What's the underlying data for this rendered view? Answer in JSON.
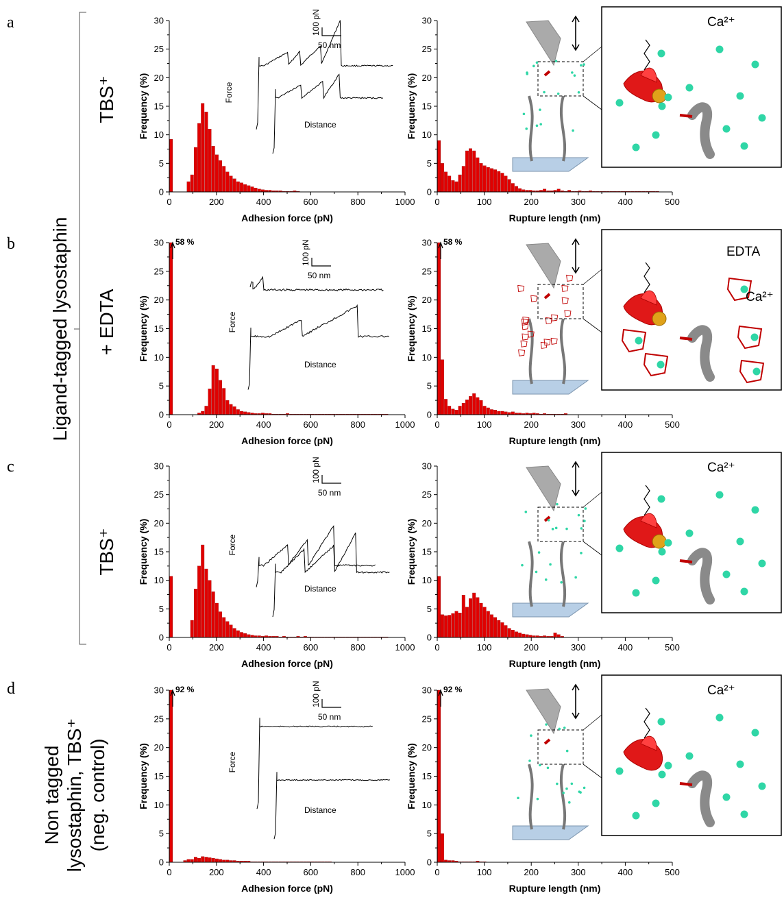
{
  "figure": {
    "row_labels": {
      "left_group": "Ligand-tagged lysostaphin",
      "a": "TBS⁺",
      "b": "+ EDTA",
      "c": "TBS⁺",
      "d_line1": "Non tagged",
      "d_line2": "lysostaphin, TBS⁺",
      "d_line3": "(neg. control)"
    },
    "panels": [
      "a",
      "b",
      "c",
      "d"
    ],
    "inset_labels": {
      "force": "Force",
      "distance": "Distance",
      "scale_force": "100 pN",
      "scale_distance": "50 nm"
    },
    "schematic_labels": {
      "ion": "Ca²⁺",
      "chelator": "EDTA"
    },
    "colors": {
      "bar": "#e00000",
      "bar_edge": "#8a0000",
      "calcium": "#2fd6a6",
      "edta_cage": "#c00000",
      "surface": "#b8cfe6"
    }
  },
  "chart_data": [
    {
      "id": "a-adhesion",
      "type": "bar",
      "panel": "a",
      "xlabel": "Adhesion force (pN)",
      "ylabel": "Frequency (%)",
      "xlim": [
        0,
        1000
      ],
      "ylim": [
        0,
        30
      ],
      "xticks": [
        0,
        200,
        400,
        600,
        800,
        1000
      ],
      "yticks": [
        0,
        5,
        10,
        15,
        20,
        25,
        30
      ],
      "bin_width": 15,
      "zero_bin": 9.2,
      "break_label": "",
      "bin_start": 75,
      "values": [
        1.8,
        3.0,
        7.8,
        12.0,
        15.5,
        14.0,
        11.0,
        8.0,
        6.5,
        5.5,
        4.5,
        3.5,
        2.8,
        2.3,
        1.8,
        1.6,
        1.3,
        1.1,
        0.9,
        0.7,
        0.5,
        0.4,
        0.3,
        0.3,
        0.2,
        0.2,
        0.2,
        0.1,
        0.1,
        0.1,
        0.2,
        0.1
      ]
    },
    {
      "id": "a-rupture",
      "type": "bar",
      "panel": "a",
      "xlabel": "Rupture length (nm)",
      "ylabel": "Frequency (%)",
      "xlim": [
        0,
        500
      ],
      "ylim": [
        0,
        30
      ],
      "xticks": [
        0,
        100,
        200,
        300,
        400,
        500
      ],
      "yticks": [
        0,
        5,
        10,
        15,
        20,
        25,
        30
      ],
      "bin_width": 7.5,
      "zero_bin": 9.0,
      "break_label": "",
      "bin_start": 7.5,
      "values": [
        5.0,
        3.5,
        2.8,
        2.0,
        1.8,
        3.0,
        4.5,
        7.2,
        7.6,
        7.2,
        6.0,
        5.0,
        4.6,
        4.3,
        4.1,
        3.9,
        3.6,
        3.3,
        2.8,
        2.2,
        1.5,
        1.0,
        0.6,
        0.4,
        0.3,
        0.3,
        0.2,
        0.2,
        0.3,
        0.5,
        0.2,
        0.2,
        0.3,
        0.5,
        0.2,
        0.1,
        0.3,
        0.1,
        0.1,
        0.2,
        0.1,
        0.1,
        0.2,
        0.1,
        0.1,
        0.1,
        0.1,
        0.1,
        0.1,
        0.1,
        0.1,
        0.1,
        0.1,
        0.1,
        0.1,
        0.1,
        0.1,
        0.1,
        0.1,
        0.1,
        0.1,
        0.1
      ]
    },
    {
      "id": "b-adhesion",
      "type": "bar",
      "panel": "b",
      "xlabel": "Adhesion force (pN)",
      "ylabel": "Frequency (%)",
      "xlim": [
        0,
        1000
      ],
      "ylim": [
        0,
        30
      ],
      "xticks": [
        0,
        200,
        400,
        600,
        800,
        1000
      ],
      "yticks": [
        0,
        5,
        10,
        15,
        20,
        25,
        30
      ],
      "bin_width": 15,
      "zero_bin": 58,
      "break_label": "58 %",
      "bin_start": 120,
      "values": [
        0.3,
        0.6,
        1.5,
        4.5,
        8.6,
        8.0,
        6.0,
        4.6,
        2.5,
        1.8,
        1.4,
        0.9,
        0.6,
        0.5,
        0.4,
        0.3,
        0.2,
        0.2,
        0.3,
        0.2,
        0.2,
        0.1,
        0.1,
        0.1,
        0.1,
        0.2,
        0.1,
        0.1,
        0.1,
        0.1,
        0.1,
        0.1,
        0.1,
        0.1,
        0.1,
        0.1,
        0.1,
        0.1,
        0.1,
        0.1,
        0.1,
        0.1,
        0.1,
        0.1,
        0.1,
        0.1,
        0.1,
        0.1,
        0.1,
        0.1,
        0.1,
        0.1,
        0.1,
        0.1
      ]
    },
    {
      "id": "b-rupture",
      "type": "bar",
      "panel": "b",
      "xlabel": "Rupture length (nm)",
      "ylabel": "Frequency (%)",
      "xlim": [
        0,
        500
      ],
      "ylim": [
        0,
        30
      ],
      "xticks": [
        0,
        100,
        200,
        300,
        400,
        500
      ],
      "yticks": [
        0,
        5,
        10,
        15,
        20,
        25,
        30
      ],
      "bin_width": 7.5,
      "zero_bin": 58,
      "break_label": "58 %",
      "bin_start": 7.5,
      "values": [
        9.6,
        2.7,
        1.5,
        1.0,
        0.8,
        1.5,
        2.0,
        2.6,
        3.2,
        3.7,
        3.0,
        2.5,
        1.5,
        1.2,
        0.9,
        0.8,
        0.6,
        0.6,
        0.5,
        0.4,
        0.5,
        0.3,
        0.3,
        0.2,
        0.3,
        0.2,
        0.3,
        0.2,
        0.1,
        0.2,
        0.1,
        0.1,
        0.1,
        0.1,
        0.1,
        0.2
      ]
    },
    {
      "id": "c-adhesion",
      "type": "bar",
      "panel": "c",
      "xlabel": "Adhesion force (pN)",
      "ylabel": "Frequency (%)",
      "xlim": [
        0,
        1000
      ],
      "ylim": [
        0,
        30
      ],
      "xticks": [
        0,
        200,
        400,
        600,
        800,
        1000
      ],
      "yticks": [
        0,
        5,
        10,
        15,
        20,
        25,
        30
      ],
      "bin_width": 15,
      "zero_bin": 10.7,
      "break_label": "",
      "bin_start": 90,
      "values": [
        3.0,
        8.5,
        12.5,
        16.2,
        12.0,
        10.0,
        8.0,
        6.0,
        4.5,
        3.5,
        2.8,
        2.2,
        1.6,
        1.2,
        0.9,
        0.7,
        0.5,
        0.4,
        0.3,
        0.3,
        0.2,
        0.3,
        0.2,
        0.2,
        0.2,
        0.1,
        0.2,
        0.1,
        0.1,
        0.1,
        0.2,
        0.1,
        0.2,
        0.1,
        0.1,
        0.1,
        0.1,
        0.1,
        0.1,
        0.1,
        0.1,
        0.1,
        0.1,
        0.1,
        0.1,
        0.1,
        0.1,
        0.1,
        0.1,
        0.1,
        0.1,
        0.1,
        0.1,
        0.1,
        0.1,
        0.1
      ]
    },
    {
      "id": "c-rupture",
      "type": "bar",
      "panel": "c",
      "xlabel": "Rupture length (nm)",
      "ylabel": "Frequency (%)",
      "xlim": [
        0,
        500
      ],
      "ylim": [
        0,
        30
      ],
      "xticks": [
        0,
        100,
        200,
        300,
        400,
        500
      ],
      "yticks": [
        0,
        5,
        10,
        15,
        20,
        25,
        30
      ],
      "bin_width": 7.5,
      "zero_bin": 10.7,
      "break_label": "",
      "bin_start": 7.5,
      "values": [
        4.0,
        3.8,
        3.9,
        4.2,
        4.6,
        4.3,
        7.4,
        5.3,
        6.8,
        7.8,
        7.0,
        6.0,
        5.3,
        4.6,
        4.0,
        3.5,
        3.0,
        2.6,
        2.1,
        1.6,
        1.3,
        1.0,
        0.8,
        0.6,
        0.5,
        0.4,
        0.3,
        0.3,
        0.2,
        0.3,
        0.2,
        0.2,
        0.8,
        0.5,
        0.2
      ]
    },
    {
      "id": "d-adhesion",
      "type": "bar",
      "panel": "d",
      "xlabel": "Adhesion force (pN)",
      "ylabel": "Frequency (%)",
      "xlim": [
        0,
        1000
      ],
      "ylim": [
        0,
        30
      ],
      "xticks": [
        0,
        200,
        400,
        600,
        800,
        1000
      ],
      "yticks": [
        0,
        5,
        10,
        15,
        20,
        25,
        30
      ],
      "bin_width": 15,
      "zero_bin": 92,
      "break_label": "92 %",
      "bin_start": 60,
      "values": [
        0.3,
        0.5,
        0.5,
        0.9,
        0.7,
        1.0,
        0.9,
        0.8,
        0.7,
        0.6,
        0.5,
        0.4,
        0.4,
        0.3,
        0.3,
        0.2,
        0.2,
        0.2,
        0.2,
        0.1,
        0.1,
        0.1,
        0.1,
        0.1,
        0.1,
        0.1,
        0.1,
        0.1,
        0.1,
        0.1,
        0.1,
        0.1,
        0.1,
        0.1,
        0.1,
        0.1,
        0.1,
        0.1,
        0.1,
        0.1,
        0.1,
        0.1
      ]
    },
    {
      "id": "d-rupture",
      "type": "bar",
      "panel": "d",
      "xlabel": "Rupture length (nm)",
      "ylabel": "Frequency (%)",
      "xlim": [
        0,
        500
      ],
      "ylim": [
        0,
        30
      ],
      "xticks": [
        0,
        100,
        200,
        300,
        400,
        500
      ],
      "yticks": [
        0,
        5,
        10,
        15,
        20,
        25,
        30
      ],
      "bin_width": 7.5,
      "zero_bin": 92,
      "break_label": "92 %",
      "bin_start": 7.5,
      "values": [
        5.0,
        0.4,
        0.3,
        0.3,
        0.2,
        0.1,
        0.1,
        0.1,
        0.1,
        0.1,
        0.2,
        0.1,
        0.1
      ]
    }
  ]
}
